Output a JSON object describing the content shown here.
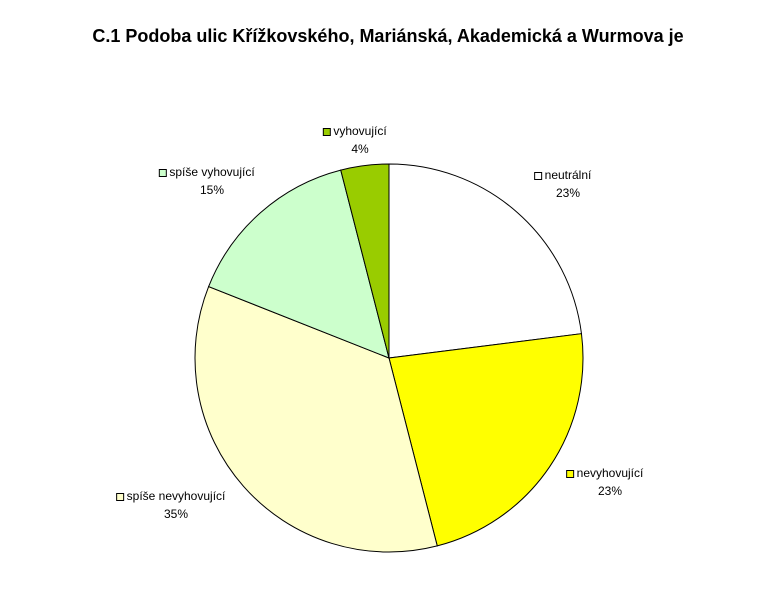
{
  "chart_data": {
    "type": "pie",
    "title": "C.1 Podoba ulic Křížkovského, Mariánská, Akademická a Wurmova je",
    "categories": [
      "neutrální",
      "nevyhovující",
      "spíše nevyhovující",
      "spíše vyhovující",
      "vyhovující"
    ],
    "values": [
      23,
      23,
      35,
      15,
      4
    ],
    "value_labels": [
      "23%",
      "23%",
      "35%",
      "15%",
      "4%"
    ],
    "colors": [
      "#ffffff",
      "#ffff00",
      "#ffffcc",
      "#ccffcc",
      "#99cc00"
    ]
  }
}
